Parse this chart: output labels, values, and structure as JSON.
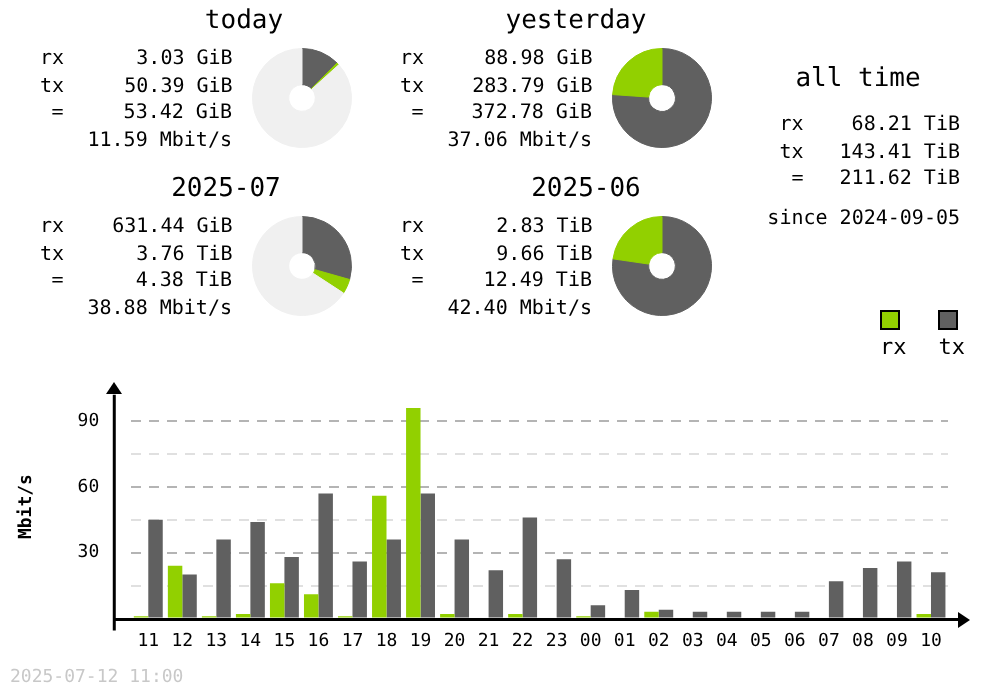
{
  "chart_data": [
    {
      "type": "donut",
      "title": "today",
      "categories": [
        null,
        null,
        null
      ],
      "values": [
        12.5,
        0.8,
        86.7
      ],
      "colors": [
        "#606060",
        "#92d000",
        "#f0f0f0"
      ],
      "annotations": [
        "rx      3.03 GiB",
        "tx     50.39 GiB",
        "=     53.42 GiB",
        "11.59 Mbit/s"
      ]
    },
    {
      "type": "donut",
      "title": "yesterday",
      "categories": [
        null,
        null
      ],
      "values": [
        76.1,
        23.9
      ],
      "colors": [
        "#606060",
        "#92d000"
      ],
      "annotations": [
        "rx     88.98 GiB",
        "tx    283.79 GiB",
        "=    372.78 GiB",
        "37.06 Mbit/s"
      ]
    },
    {
      "type": "other",
      "title": "all time",
      "annotations": [
        "rx    68.21 TiB",
        "tx   143.41 TiB",
        "=   211.62 TiB",
        "since 2024-09-05"
      ]
    },
    {
      "type": "donut",
      "title": "2025-07",
      "categories": [
        null,
        null,
        null
      ],
      "values": [
        29.4,
        4.8,
        65.8
      ],
      "colors": [
        "#606060",
        "#92d000",
        "#f0f0f0"
      ],
      "annotations": [
        "rx    631.44 GiB",
        "tx      3.76 TiB",
        "=      4.38 TiB",
        "38.88 Mbit/s"
      ]
    },
    {
      "type": "donut",
      "title": "2025-06",
      "categories": [
        null,
        null
      ],
      "values": [
        77.3,
        22.7
      ],
      "colors": [
        "#606060",
        "#92d000"
      ],
      "annotations": [
        "rx      2.83 TiB",
        "tx      9.66 TiB",
        "=     12.49 TiB",
        "42.40 Mbit/s"
      ]
    },
    {
      "type": "bar",
      "ylabel": "Mbit/s",
      "categories": [
        "11",
        "12",
        "13",
        "14",
        "15",
        "16",
        "17",
        "18",
        "19",
        "20",
        "21",
        "22",
        "23",
        "00",
        "01",
        "02",
        "03",
        "04",
        "05",
        "06",
        "07",
        "08",
        "09",
        "10"
      ],
      "series": [
        {
          "name": "rx",
          "color": "#92d000",
          "values": [
            1,
            24,
            1,
            2,
            16,
            11,
            1,
            56,
            96,
            2,
            0,
            2,
            0,
            1,
            0,
            3,
            0,
            0,
            0,
            0,
            0,
            0,
            0,
            2
          ]
        },
        {
          "name": "tx",
          "color": "#606060",
          "values": [
            45,
            20,
            36,
            44,
            28,
            57,
            26,
            36,
            57,
            36,
            22,
            46,
            27,
            6,
            13,
            4,
            3,
            3,
            3,
            3,
            17,
            23,
            26,
            21
          ]
        }
      ],
      "ylim": [
        0,
        102
      ],
      "yticks": [
        {
          "value": 0,
          "label": null
        },
        {
          "value": 15,
          "label": null
        },
        30,
        {
          "value": 45,
          "label": null
        },
        60,
        {
          "value": 75,
          "label": null
        },
        90
      ],
      "grid": "y",
      "line_style": "dashed",
      "legend": "top right",
      "annotations": [
        "2025-07-12 11:00"
      ]
    }
  ]
}
